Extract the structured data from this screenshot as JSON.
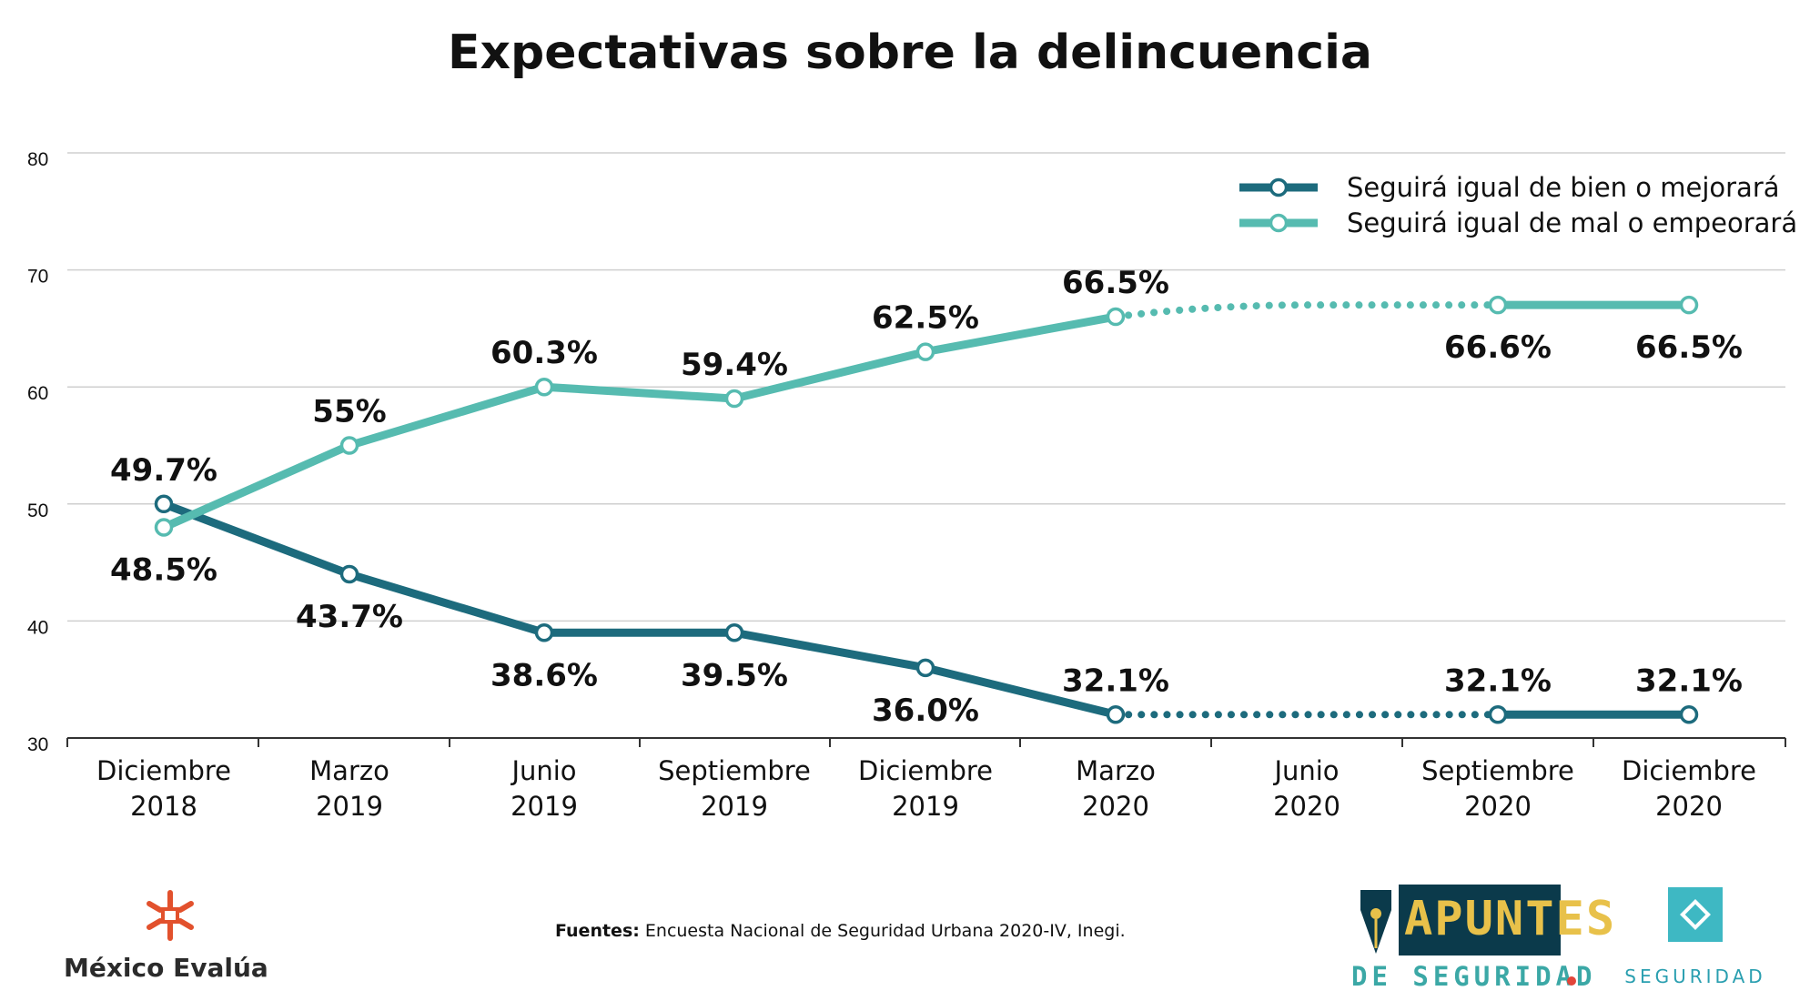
{
  "chart_data": {
    "type": "line",
    "title": "Expectativas sobre la delincuencia",
    "categories": [
      [
        "Diciembre",
        "2018"
      ],
      [
        "Marzo",
        "2019"
      ],
      [
        "Junio",
        "2019"
      ],
      [
        "Septiembre",
        "2019"
      ],
      [
        "Diciembre",
        "2019"
      ],
      [
        "Marzo",
        "2020"
      ],
      [
        "Junio",
        "2020"
      ],
      [
        "Septiembre",
        "2020"
      ],
      [
        "Diciembre",
        "2020"
      ]
    ],
    "ylim": [
      30,
      80
    ],
    "yticks": [
      30,
      40,
      50,
      60,
      70,
      80
    ],
    "grid": true,
    "legend_position": "top-right",
    "series": [
      {
        "name": "Seguirá igual de bien o mejorará",
        "color": "#1d6b7d",
        "values": [
          50,
          44,
          39,
          39,
          36,
          32,
          null,
          32,
          32
        ],
        "labels": [
          "49.7%",
          "43.7%",
          "38.6%",
          "39.5%",
          "36.0%",
          "32.1%",
          "",
          "32.1%",
          "32.1%"
        ],
        "label_side": [
          "above",
          "below",
          "below",
          "below",
          "below",
          "above",
          "",
          "above",
          "above"
        ],
        "dotted_between": [
          5,
          7
        ]
      },
      {
        "name": "Seguirá igual de mal o empeorará",
        "color": "#56bbb0",
        "values": [
          48,
          55,
          60,
          59,
          63,
          66,
          null,
          67,
          67
        ],
        "labels": [
          "48.5%",
          "55%",
          "60.3%",
          "59.4%",
          "62.5%",
          "66.5%",
          "",
          "66.6%",
          "66.5%"
        ],
        "label_side": [
          "below",
          "above",
          "above",
          "above",
          "above",
          "above",
          "",
          "below",
          "below"
        ],
        "dotted_between": [
          5,
          7
        ]
      }
    ]
  },
  "source": {
    "label": "Fuentes:",
    "text": " Encuesta Nacional de Seguridad Urbana 2020-IV, Inegi."
  },
  "logos": {
    "mexico_evalua": "México Evalúa",
    "apuntes_top": "APUNTES",
    "apuntes_bottom": "DE SEGURIDAD",
    "seguridad": "SEGURIDAD"
  }
}
